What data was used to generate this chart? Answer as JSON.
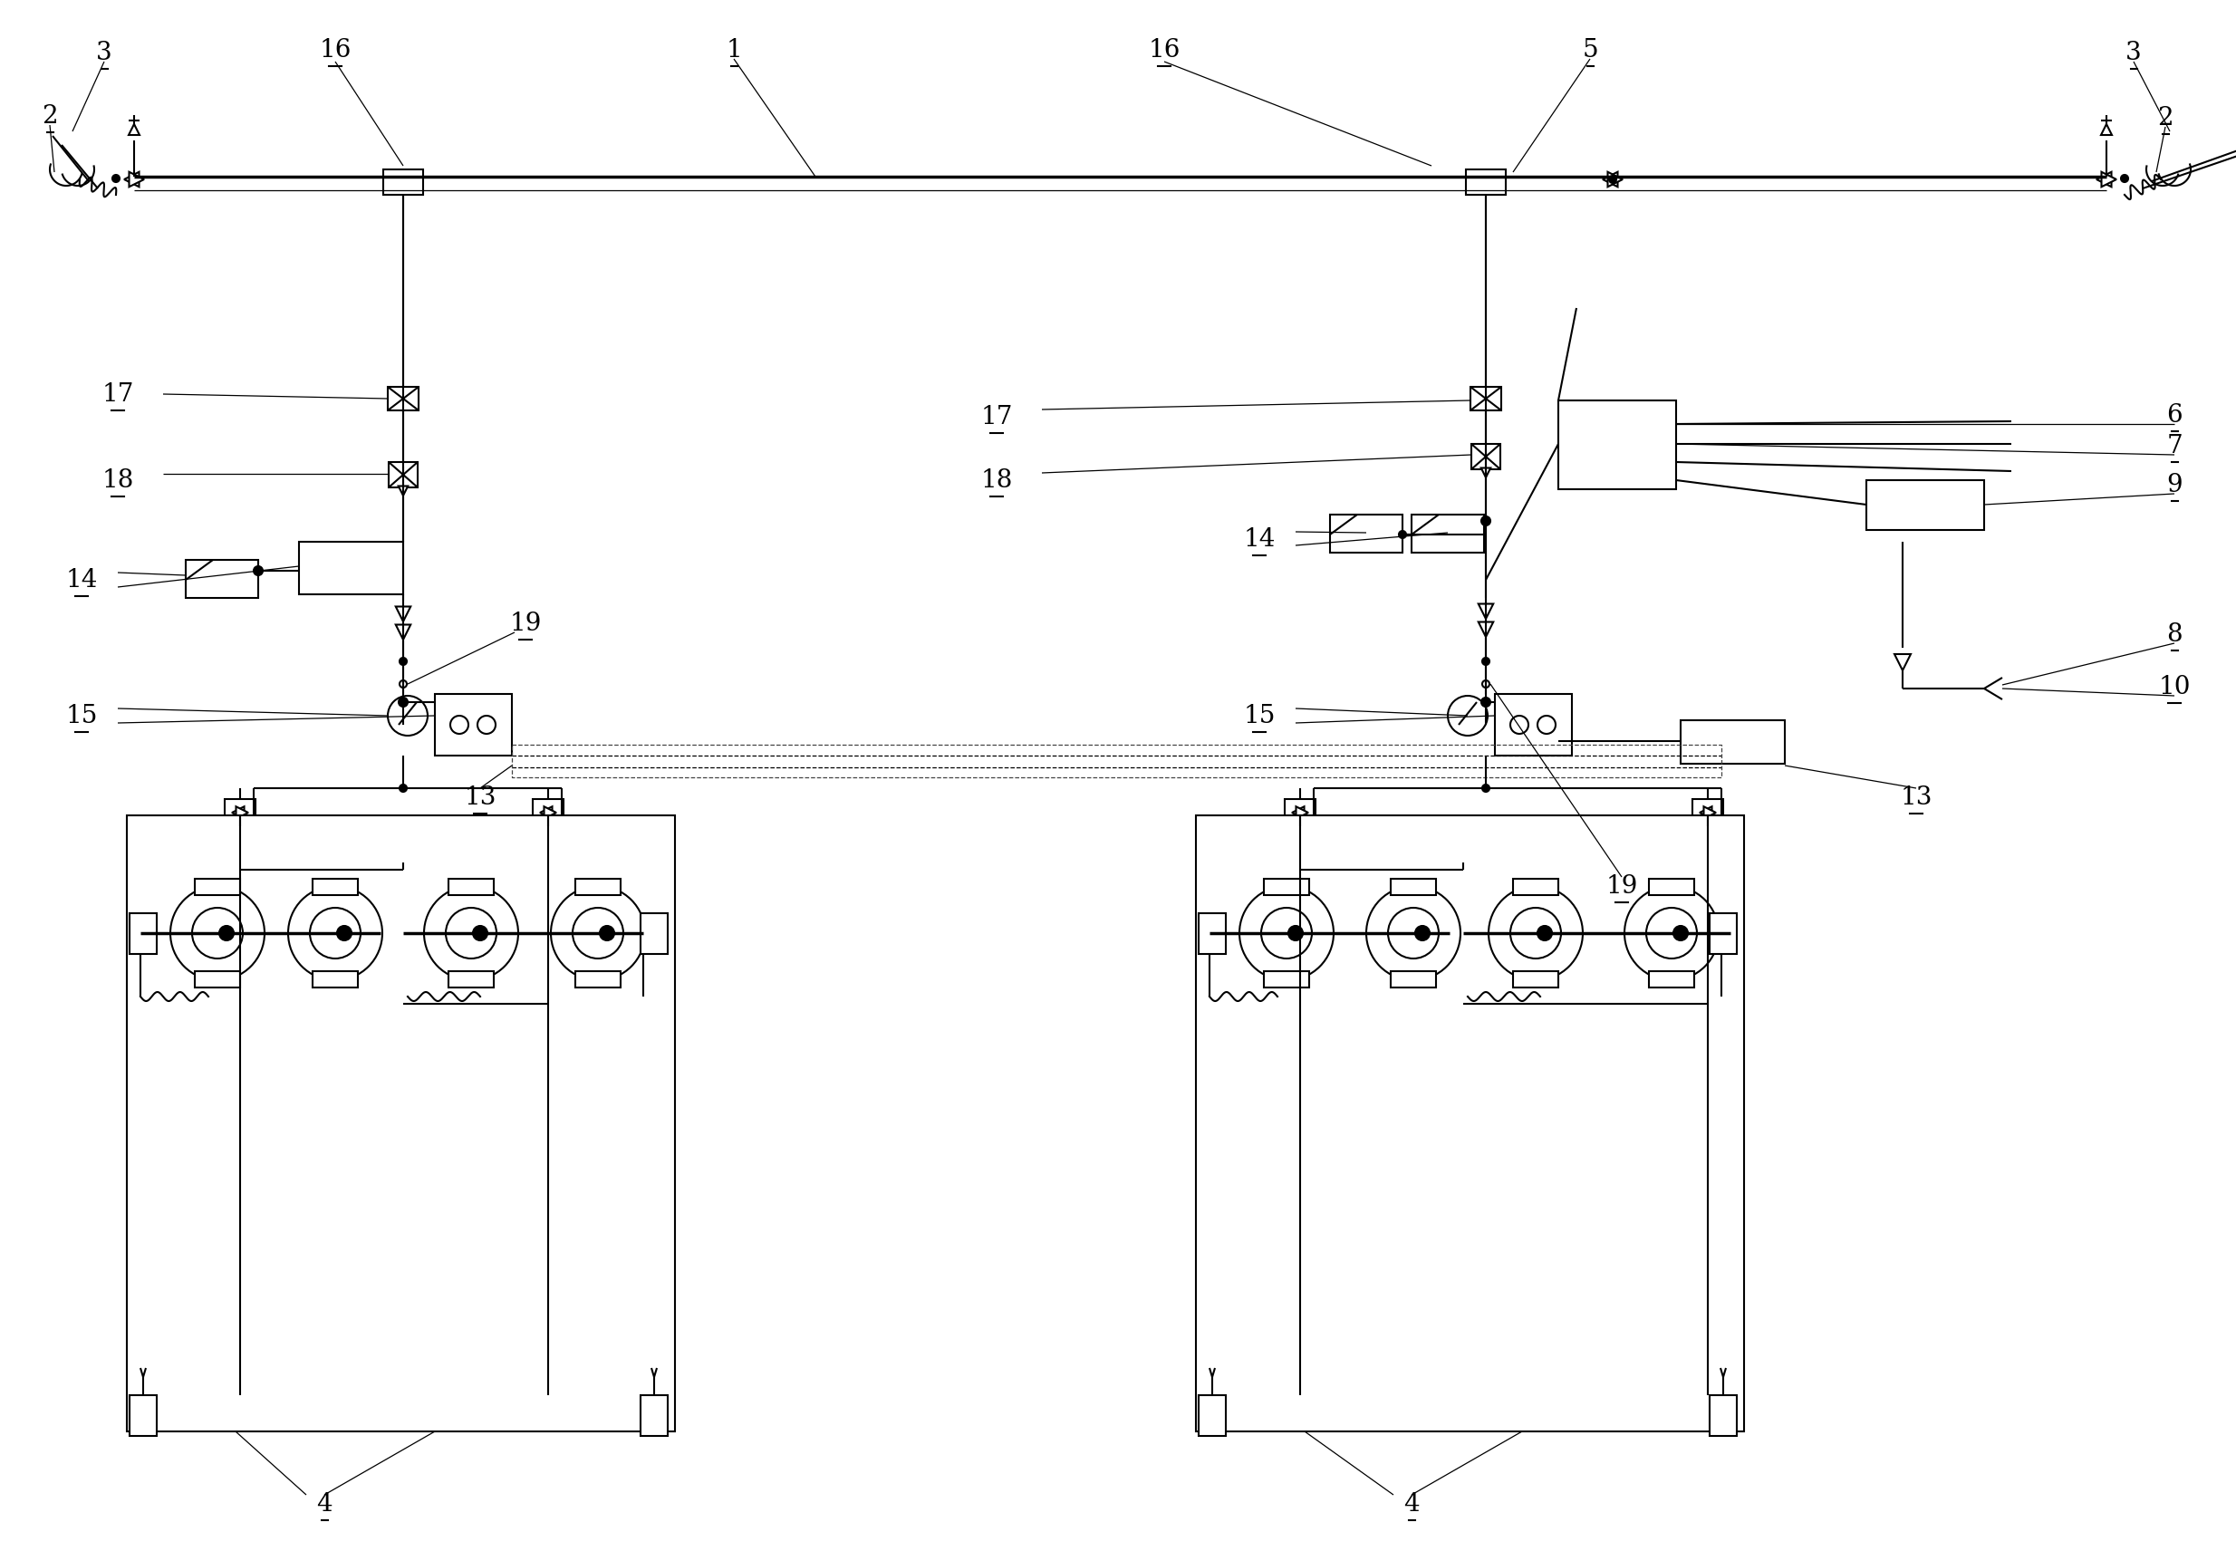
{
  "bg_color": "#ffffff",
  "line_color": "#000000",
  "lw": 1.5,
  "lw_thick": 2.5,
  "lw_thin": 0.9,
  "fs": 20
}
